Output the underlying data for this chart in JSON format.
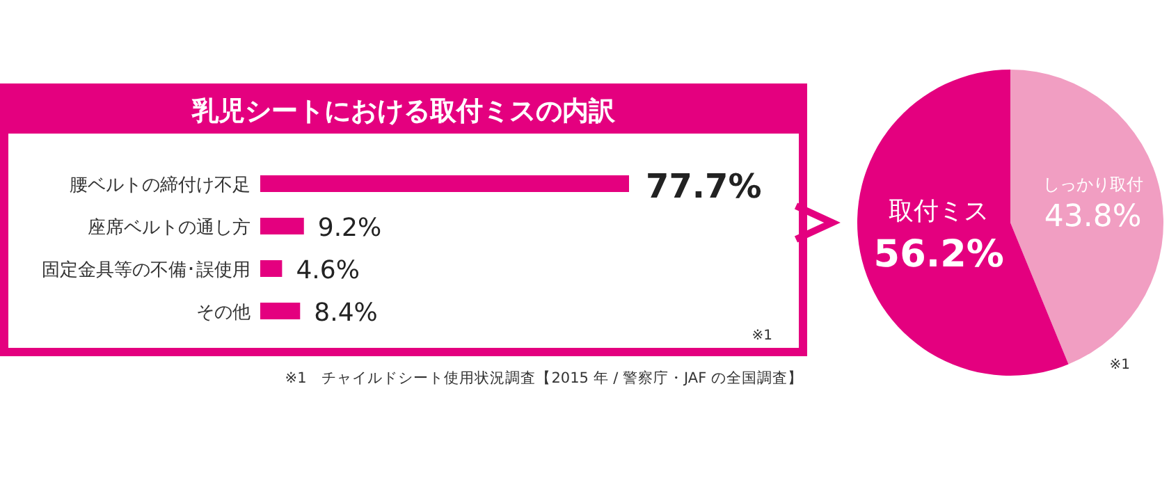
{
  "chart_data": [
    {
      "type": "bar",
      "orientation": "horizontal",
      "relative": false,
      "title": "乳児シートにおける取付ミスの内訳",
      "categories": [
        "腰ベルトの締付け不足",
        "座席ベルトの通し方",
        "固定金具等の不備･誤使用",
        "その他"
      ],
      "values": [
        77.7,
        9.2,
        4.6,
        8.4
      ],
      "value_labels": [
        "77.7%",
        "9.2%",
        "4.6%",
        "8.4%"
      ],
      "color": "#e4007f",
      "annotations": [
        "※1",
        "※1　チャイルドシート使用状況調査【2015 年 / 警察庁・JAF の全国調査】"
      ]
    },
    {
      "type": "pie",
      "categories": [
        "取付ミス",
        "しっかり取付"
      ],
      "values": [
        56.2,
        43.8
      ],
      "colors": [
        "#e4007f",
        "#f19ec2"
      ],
      "value_labels": [
        "56.2%",
        "43.8%"
      ],
      "annotations": [
        "※1"
      ]
    }
  ]
}
